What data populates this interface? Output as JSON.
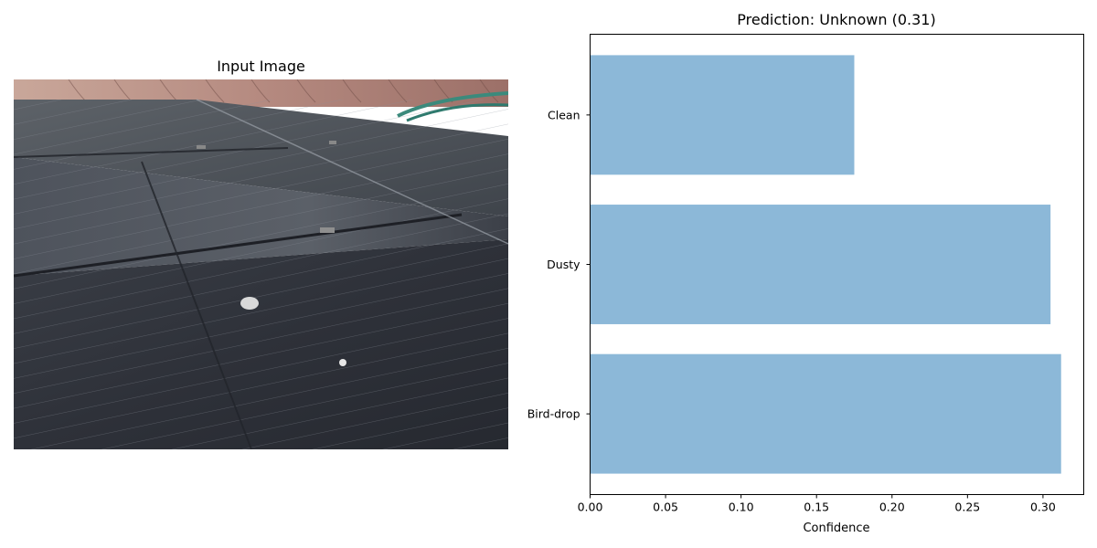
{
  "figure": {
    "image_title": "Input Image"
  },
  "chart_data": {
    "type": "bar",
    "orientation": "horizontal",
    "title": "Prediction: Unknown (0.31)",
    "xlabel": "Confidence",
    "ylabel": "",
    "categories": [
      "Bird-drop",
      "Dusty",
      "Clean"
    ],
    "values": [
      0.312,
      0.305,
      0.175
    ],
    "xlim": [
      0.0,
      0.327
    ],
    "xticks": [
      0.0,
      0.05,
      0.1,
      0.15,
      0.2,
      0.25,
      0.3
    ],
    "xtick_labels": [
      "0.00",
      "0.05",
      "0.10",
      "0.15",
      "0.20",
      "0.25",
      "0.30"
    ],
    "bar_color": "#8cb8d8",
    "grid": false
  }
}
